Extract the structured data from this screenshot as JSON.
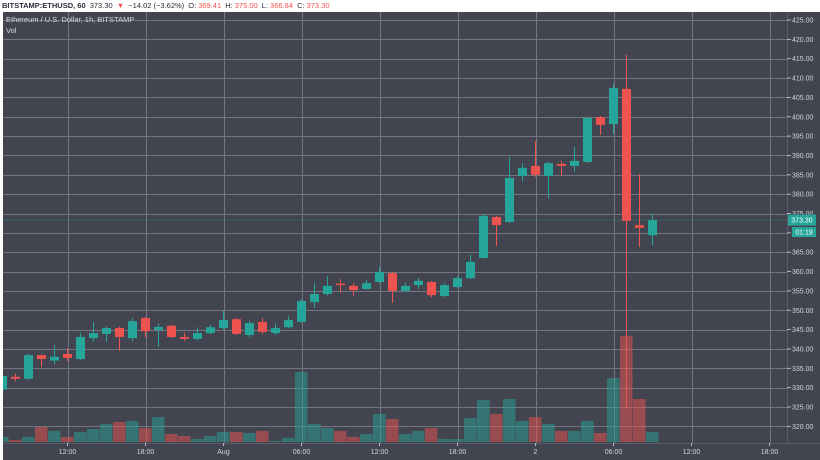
{
  "header": {
    "symbol": "BITSTAMP:ETHUSD, 60",
    "last": "373.30",
    "change_arrow": "▼",
    "change": "−14.02 (−3.62%)",
    "o_label": "O:",
    "o_value": "369.41",
    "h_label": "H:",
    "h_value": "375.00",
    "l_label": "L:",
    "l_value": "366.84",
    "c_label": "C:",
    "c_value": "373.30"
  },
  "legend": {
    "title": "Ethereum / U.S. Dollar, 1h, BITSTAMP",
    "volume": "Vol"
  },
  "price_label": {
    "value": "373.30",
    "countdown": "01:19"
  },
  "chart_data": {
    "type": "candlestick",
    "title": "Ethereum / U.S. Dollar, 1h, BITSTAMP",
    "symbol": "BITSTAMP:ETHUSD",
    "interval": "60",
    "xlabel": "",
    "ylabel": "",
    "ylim": [
      318,
      428
    ],
    "grid": true,
    "colors": {
      "up": "#26a69a",
      "down": "#ef5350",
      "background": "#42454f",
      "grid": "#737681",
      "axis_text": "#d1d4dc"
    },
    "y_ticks": [
      "425.00",
      "420.00",
      "415.00",
      "410.00",
      "405.00",
      "400.00",
      "395.00",
      "390.00",
      "385.00",
      "380.00",
      "375.00",
      "370.00",
      "365.00",
      "360.00",
      "355.00",
      "350.00",
      "345.00",
      "340.00",
      "335.00",
      "330.00",
      "325.00",
      "320.00"
    ],
    "x_ticks": [
      {
        "label": "12:00",
        "index": 5
      },
      {
        "label": "18:00",
        "index": 11
      },
      {
        "label": "Aug",
        "index": 17
      },
      {
        "label": "06:00",
        "index": 23
      },
      {
        "label": "12:00",
        "index": 29
      },
      {
        "label": "18:00",
        "index": 35
      },
      {
        "label": "2",
        "index": 41
      },
      {
        "label": "06:00",
        "index": 47
      },
      {
        "label": "12:00",
        "index": 53
      },
      {
        "label": "18:00",
        "index": 59
      }
    ],
    "candles": [
      [
        329.5,
        333.5,
        329.2,
        333.0
      ],
      [
        332.8,
        333.6,
        331.6,
        332.3
      ],
      [
        332.3,
        338.8,
        332.0,
        338.4
      ],
      [
        338.4,
        338.6,
        335.3,
        337.4
      ],
      [
        337.0,
        341.0,
        336.0,
        338.0
      ],
      [
        338.7,
        340.2,
        336.9,
        337.7
      ],
      [
        337.4,
        344.2,
        337.0,
        343.1
      ],
      [
        342.8,
        347.0,
        341.8,
        344.1
      ],
      [
        343.9,
        345.8,
        341.8,
        345.4
      ],
      [
        345.4,
        345.8,
        339.5,
        343.1
      ],
      [
        342.8,
        348.0,
        342.0,
        347.2
      ],
      [
        348.0,
        348.3,
        343.0,
        344.6
      ],
      [
        344.9,
        346.6,
        340.5,
        345.7
      ],
      [
        346.0,
        346.3,
        342.8,
        343.1
      ],
      [
        343.1,
        344.2,
        342.0,
        342.6
      ],
      [
        342.6,
        345.6,
        342.2,
        344.1
      ],
      [
        344.1,
        346.3,
        343.8,
        345.6
      ],
      [
        345.4,
        349.8,
        345.0,
        347.5
      ],
      [
        347.7,
        348.0,
        343.6,
        343.9
      ],
      [
        343.6,
        347.3,
        343.0,
        346.7
      ],
      [
        347.0,
        348.0,
        343.9,
        344.4
      ],
      [
        344.1,
        346.6,
        343.6,
        345.4
      ],
      [
        345.6,
        348.4,
        345.3,
        347.5
      ],
      [
        347.0,
        352.9,
        346.8,
        352.4
      ],
      [
        352.1,
        357.0,
        350.6,
        354.2
      ],
      [
        354.2,
        358.8,
        353.8,
        356.3
      ],
      [
        356.9,
        358.0,
        354.6,
        356.6
      ],
      [
        356.3,
        357.0,
        353.7,
        355.2
      ],
      [
        355.5,
        357.8,
        355.2,
        357.0
      ],
      [
        357.3,
        361.2,
        356.9,
        359.9
      ],
      [
        359.6,
        359.9,
        351.9,
        355.0
      ],
      [
        355.0,
        357.2,
        354.7,
        356.3
      ],
      [
        356.5,
        358.3,
        355.5,
        357.6
      ],
      [
        357.3,
        357.6,
        353.4,
        353.9
      ],
      [
        353.7,
        357.0,
        353.4,
        356.5
      ],
      [
        356.0,
        358.8,
        355.8,
        358.3
      ],
      [
        358.3,
        364.3,
        358.0,
        362.5
      ],
      [
        363.5,
        374.8,
        363.3,
        374.4
      ],
      [
        374.1,
        374.4,
        366.6,
        372.0
      ],
      [
        372.8,
        389.6,
        372.5,
        384.2
      ],
      [
        384.7,
        388.0,
        383.4,
        386.8
      ],
      [
        387.3,
        393.7,
        384.5,
        385.0
      ],
      [
        384.7,
        388.4,
        379.0,
        388.0
      ],
      [
        387.8,
        388.6,
        384.7,
        387.3
      ],
      [
        387.3,
        392.2,
        385.8,
        388.6
      ],
      [
        388.3,
        400.0,
        388.0,
        399.7
      ],
      [
        399.9,
        400.2,
        395.3,
        397.9
      ],
      [
        398.1,
        408.5,
        395.5,
        407.4
      ],
      [
        407.2,
        416.0,
        324.5,
        373.1
      ],
      [
        372.0,
        385.2,
        366.3,
        371.3
      ],
      [
        369.41,
        375.0,
        366.84,
        373.3
      ]
    ],
    "candle_format": [
      "open",
      "high",
      "low",
      "close"
    ],
    "volume_relative": [
      5,
      2,
      5,
      15,
      11,
      5,
      10,
      13,
      18,
      20,
      21,
      14,
      25,
      8,
      6,
      3,
      6,
      10,
      10,
      9,
      11,
      1,
      4,
      70,
      18,
      14,
      11,
      5,
      8,
      28,
      23,
      8,
      11,
      14,
      3,
      3,
      24,
      42,
      28,
      43,
      21,
      25,
      18,
      11,
      11,
      21,
      9,
      64,
      106,
      43,
      10
    ],
    "last_price": 373.3
  }
}
